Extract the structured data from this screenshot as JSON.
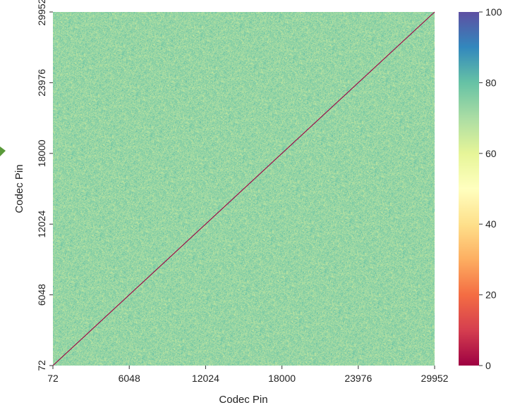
{
  "chart_data": {
    "type": "heatmap",
    "title": "",
    "xlabel": "Codec Pin",
    "ylabel": "Codec Pin",
    "x_ticks": [
      "72",
      "6048",
      "12024",
      "18000",
      "23976",
      "29952"
    ],
    "y_ticks": [
      "72",
      "6048",
      "12024",
      "18000",
      "23976",
      "29952"
    ],
    "x_range": [
      72,
      29952
    ],
    "y_range": [
      72,
      29952
    ],
    "colorbar": {
      "colormap": "Spectral",
      "range": [
        0,
        100
      ],
      "ticks": [
        "0",
        "20",
        "40",
        "60",
        "80",
        "100"
      ],
      "stops": [
        {
          "value": 0,
          "color": "#9e0142"
        },
        {
          "value": 10,
          "color": "#d53e4f"
        },
        {
          "value": 20,
          "color": "#f46d43"
        },
        {
          "value": 30,
          "color": "#fdae61"
        },
        {
          "value": 40,
          "color": "#fee08b"
        },
        {
          "value": 50,
          "color": "#ffffbf"
        },
        {
          "value": 60,
          "color": "#e6f598"
        },
        {
          "value": 70,
          "color": "#abdda4"
        },
        {
          "value": 80,
          "color": "#66c2a5"
        },
        {
          "value": 90,
          "color": "#3288bd"
        },
        {
          "value": 100,
          "color": "#5e4fa2"
        }
      ]
    },
    "off_diagonal_typical_value": 73,
    "off_diagonal_spread": 5,
    "diagonal_value": 0,
    "grid": false,
    "legend": "colorbar-right"
  },
  "side_marker_color": "#5a9a3a"
}
